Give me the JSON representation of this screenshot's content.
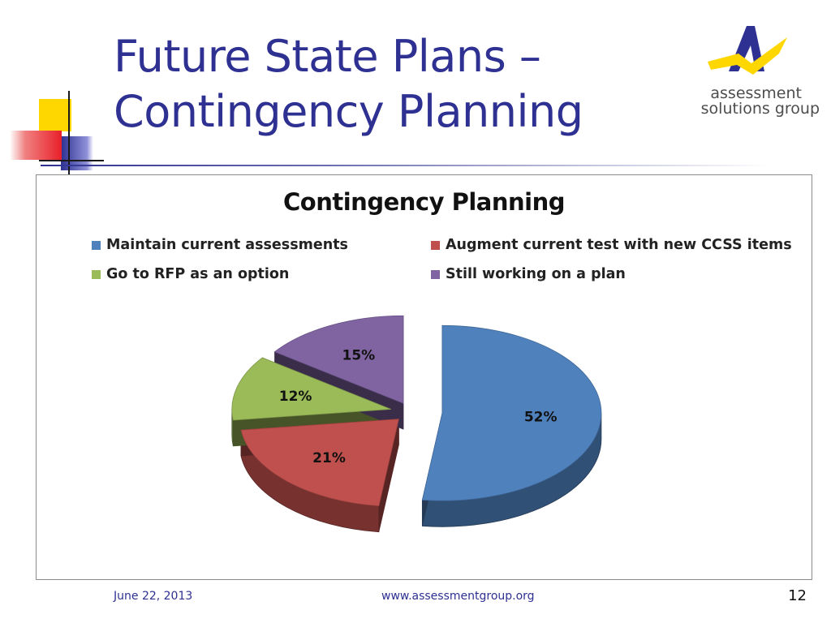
{
  "slide": {
    "title_line1": "Future State Plans –",
    "title_line2": "Contingency Planning",
    "footer_date": "June 22, 2013",
    "footer_url": "www.assessmentgroup.org",
    "page_number": "12"
  },
  "logo": {
    "line1": "assessment",
    "line2": "solutions group",
    "icon": "assessment-group-a-logo"
  },
  "colors": {
    "title": "#2e3192",
    "deco_yellow": "#ffd700",
    "deco_red": "#e8202a",
    "deco_blue": "#2e3192"
  },
  "chart_data": {
    "type": "pie",
    "title": "Contingency Planning",
    "legend_position": "top",
    "style": "3d-exploded",
    "labels": [
      "Maintain current assessments",
      "Augment current test with new CCSS items",
      "Go to RFP as an option",
      "Still working on a plan"
    ],
    "values": [
      52,
      21,
      12,
      15
    ],
    "value_labels": [
      "52%",
      "21%",
      "12%",
      "15%"
    ],
    "colors": [
      "#4f81bd",
      "#c0504d",
      "#9bbb59",
      "#8064a2"
    ]
  }
}
